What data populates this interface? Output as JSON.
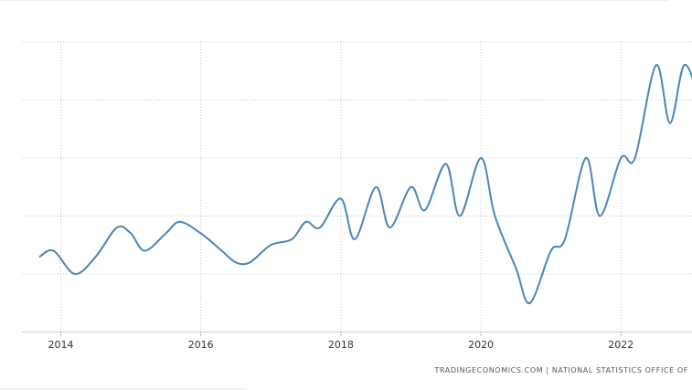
{
  "chart_data": {
    "type": "line",
    "title": "",
    "xlabel": "",
    "ylabel": "",
    "x_ticks": [
      "2014",
      "2016",
      "2018",
      "2020",
      "2022"
    ],
    "y_ticks_shown": false,
    "grid": true,
    "line_color": "#4a86b8",
    "series": [
      {
        "values": [
          {
            "x": 2013.7,
            "y": 2.3
          },
          {
            "x": 2013.9,
            "y": 2.4
          },
          {
            "x": 2014.2,
            "y": 2.0
          },
          {
            "x": 2014.5,
            "y": 2.3
          },
          {
            "x": 2014.8,
            "y": 2.8
          },
          {
            "x": 2015.0,
            "y": 2.7
          },
          {
            "x": 2015.2,
            "y": 2.4
          },
          {
            "x": 2015.5,
            "y": 2.7
          },
          {
            "x": 2015.7,
            "y": 2.9
          },
          {
            "x": 2016.0,
            "y": 2.7
          },
          {
            "x": 2016.3,
            "y": 2.4
          },
          {
            "x": 2016.5,
            "y": 2.2
          },
          {
            "x": 2016.7,
            "y": 2.2
          },
          {
            "x": 2017.0,
            "y": 2.5
          },
          {
            "x": 2017.3,
            "y": 2.6
          },
          {
            "x": 2017.5,
            "y": 2.9
          },
          {
            "x": 2017.7,
            "y": 2.8
          },
          {
            "x": 2018.0,
            "y": 3.3
          },
          {
            "x": 2018.2,
            "y": 2.6
          },
          {
            "x": 2018.5,
            "y": 3.5
          },
          {
            "x": 2018.7,
            "y": 2.8
          },
          {
            "x": 2019.0,
            "y": 3.5
          },
          {
            "x": 2019.2,
            "y": 3.1
          },
          {
            "x": 2019.5,
            "y": 3.9
          },
          {
            "x": 2019.7,
            "y": 3.0
          },
          {
            "x": 2020.0,
            "y": 4.0
          },
          {
            "x": 2020.2,
            "y": 3.0
          },
          {
            "x": 2020.5,
            "y": 2.1
          },
          {
            "x": 2020.7,
            "y": 1.5
          },
          {
            "x": 2021.0,
            "y": 2.4
          },
          {
            "x": 2021.2,
            "y": 2.6
          },
          {
            "x": 2021.5,
            "y": 4.0
          },
          {
            "x": 2021.7,
            "y": 3.0
          },
          {
            "x": 2022.0,
            "y": 4.0
          },
          {
            "x": 2022.2,
            "y": 4.0
          },
          {
            "x": 2022.5,
            "y": 5.6
          },
          {
            "x": 2022.7,
            "y": 4.6
          },
          {
            "x": 2022.9,
            "y": 5.6
          },
          {
            "x": 2023.1,
            "y": 5.1
          }
        ]
      }
    ]
  },
  "footer": {
    "source": "TRADINGECONOMICS.COM  |  NATIONAL STATISTICS OFFICE OF"
  }
}
